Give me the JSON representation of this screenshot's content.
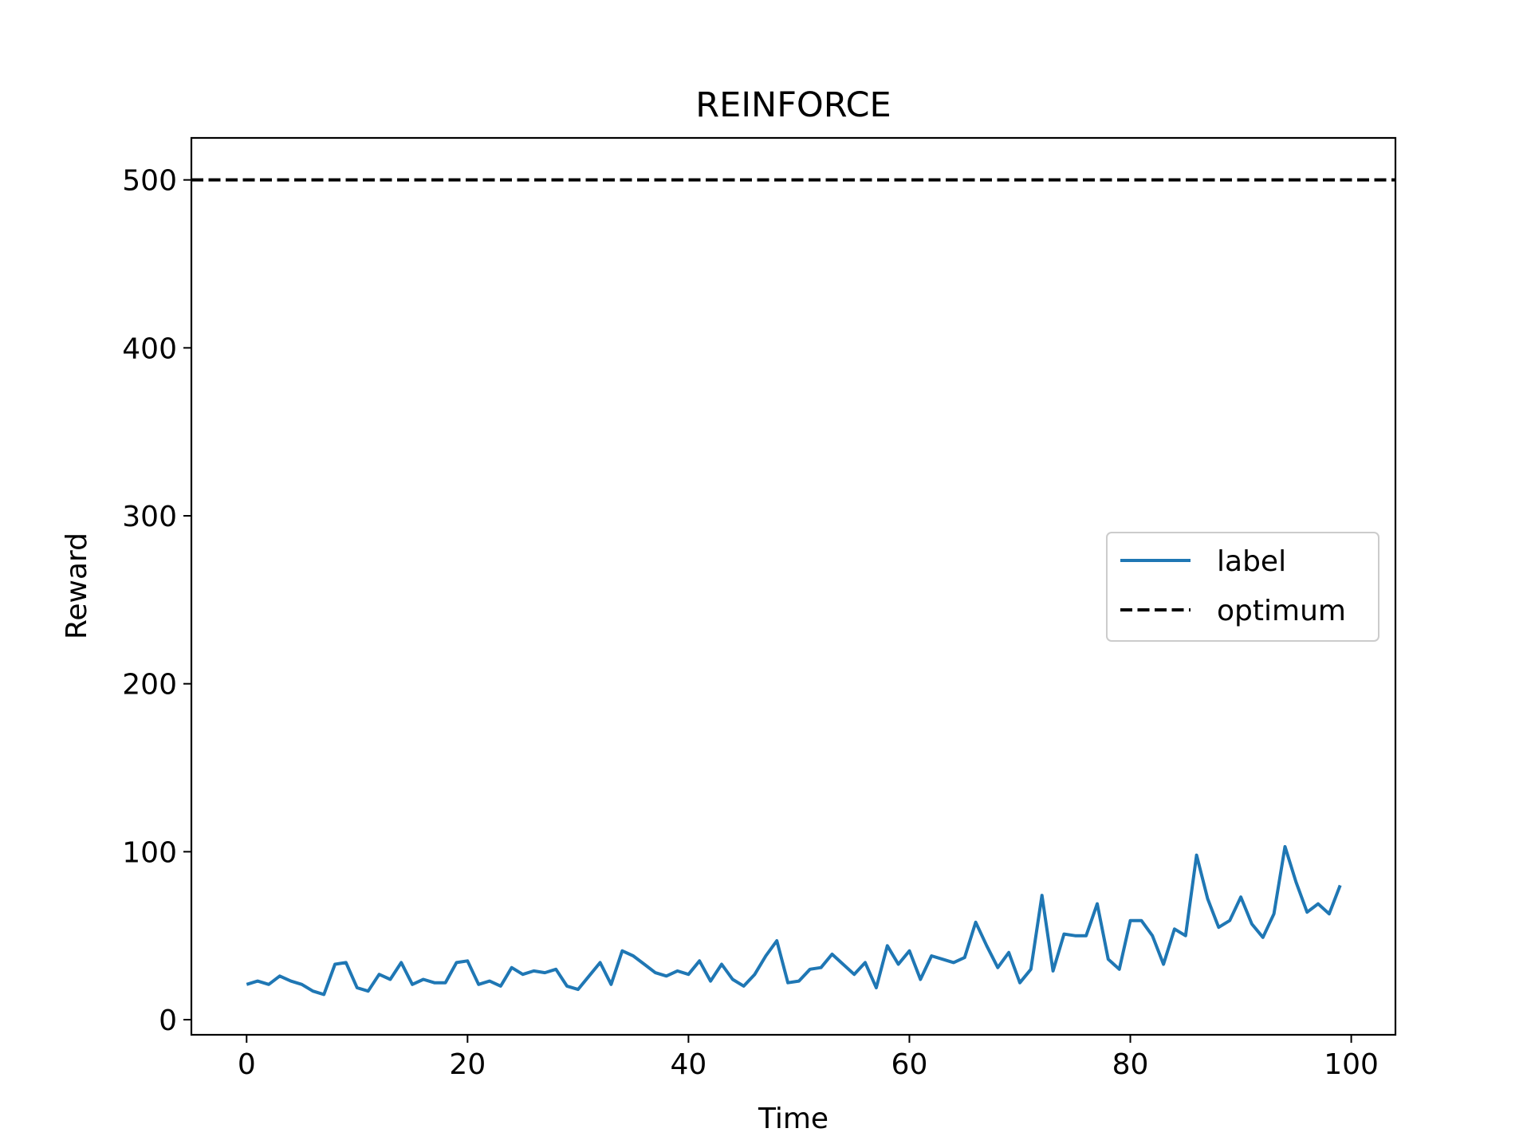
{
  "chart_data": {
    "type": "line",
    "title": "REINFORCE",
    "xlabel": "Time",
    "ylabel": "Reward",
    "xlim": [
      -5,
      104
    ],
    "ylim": [
      -9,
      525
    ],
    "xticks": [
      0,
      20,
      40,
      60,
      80,
      100
    ],
    "yticks": [
      0,
      100,
      200,
      300,
      400,
      500
    ],
    "x_tick_labels": [
      "0",
      "20",
      "40",
      "60",
      "80",
      "100"
    ],
    "y_tick_labels": [
      "0",
      "100",
      "200",
      "300",
      "400",
      "500"
    ],
    "grid": false,
    "legend_position": "center-right",
    "series": [
      {
        "name": "label",
        "color": "#1f77b4",
        "style": "solid",
        "x": [
          0,
          1,
          2,
          3,
          4,
          5,
          6,
          7,
          8,
          9,
          10,
          11,
          12,
          13,
          14,
          15,
          16,
          17,
          18,
          19,
          20,
          21,
          22,
          23,
          24,
          25,
          26,
          27,
          28,
          29,
          30,
          31,
          32,
          33,
          34,
          35,
          36,
          37,
          38,
          39,
          40,
          41,
          42,
          43,
          44,
          45,
          46,
          47,
          48,
          49,
          50,
          51,
          52,
          53,
          54,
          55,
          56,
          57,
          58,
          59,
          60,
          61,
          62,
          63,
          64,
          65,
          66,
          67,
          68,
          69,
          70,
          71,
          72,
          73,
          74,
          75,
          76,
          77,
          78,
          79,
          80,
          81,
          82,
          83,
          84,
          85,
          86,
          87,
          88,
          89,
          90,
          91,
          92,
          93,
          94,
          95,
          96,
          97,
          98,
          99
        ],
        "values": [
          21,
          23,
          21,
          26,
          23,
          21,
          17,
          15,
          33,
          34,
          19,
          17,
          27,
          24,
          34,
          21,
          24,
          22,
          22,
          34,
          35,
          21,
          23,
          20,
          31,
          27,
          29,
          28,
          30,
          20,
          18,
          26,
          34,
          21,
          41,
          38,
          33,
          28,
          26,
          29,
          27,
          35,
          23,
          33,
          24,
          20,
          27,
          38,
          47,
          22,
          23,
          30,
          31,
          39,
          33,
          27,
          34,
          19,
          44,
          33,
          41,
          24,
          38,
          36,
          34,
          37,
          58,
          44,
          31,
          40,
          22,
          30,
          74,
          29,
          51,
          50,
          50,
          69,
          36,
          30,
          59,
          59,
          50,
          33,
          54,
          50,
          98,
          72,
          55,
          59,
          73,
          57,
          49,
          63,
          103,
          82,
          64,
          69,
          63,
          80
        ]
      },
      {
        "name": "optimum",
        "color": "#000000",
        "style": "dashed",
        "constant": 500
      }
    ]
  }
}
